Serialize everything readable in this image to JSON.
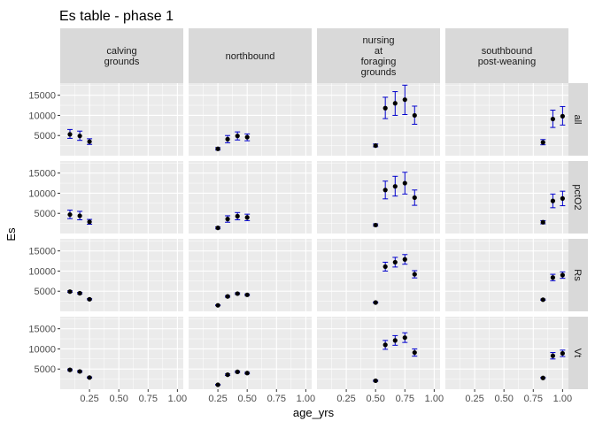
{
  "chart_data": {
    "type": "scatter",
    "title": "Es table - phase 1",
    "xlabel": "age_yrs",
    "ylabel": "Es",
    "xlim": [
      0,
      1.05
    ],
    "ylim": [
      0,
      18000
    ],
    "x_ticks": [
      0.25,
      0.5,
      0.75,
      1.0
    ],
    "x_tick_labels": [
      "0.25",
      "0.50",
      "0.75",
      "1.00"
    ],
    "y_ticks": [
      5000,
      10000,
      15000
    ],
    "y_tick_labels": [
      "5000",
      "10000",
      "15000"
    ],
    "grid": true,
    "column_facets": [
      {
        "key": "calving",
        "label": [
          "calving",
          "grounds"
        ]
      },
      {
        "key": "northbound",
        "label": [
          "northbound"
        ]
      },
      {
        "key": "nursing",
        "label": [
          "nursing",
          "at",
          "foraging",
          "grounds"
        ]
      },
      {
        "key": "southbound",
        "label": [
          "southbound",
          "post-weaning"
        ]
      }
    ],
    "row_facets": [
      "all",
      "pctO2",
      "Rs",
      "Vt"
    ],
    "colors": {
      "point": "#000000",
      "errorbar": "#0000cc",
      "panel": "#ebebeb",
      "strip": "#d9d9d9",
      "grid": "#ffffff"
    },
    "panels": [
      {
        "row": "all",
        "col": "calving",
        "points": [
          {
            "x": 0.083,
            "y": 5300,
            "lo": 4300,
            "hi": 6500
          },
          {
            "x": 0.167,
            "y": 4900,
            "lo": 3800,
            "hi": 6100
          },
          {
            "x": 0.25,
            "y": 3500,
            "lo": 2800,
            "hi": 4200
          }
        ]
      },
      {
        "row": "all",
        "col": "northbound",
        "points": [
          {
            "x": 0.25,
            "y": 1700,
            "lo": 1400,
            "hi": 2000
          },
          {
            "x": 0.333,
            "y": 4100,
            "lo": 3200,
            "hi": 5000
          },
          {
            "x": 0.417,
            "y": 4900,
            "lo": 3900,
            "hi": 5900
          },
          {
            "x": 0.5,
            "y": 4600,
            "lo": 3700,
            "hi": 5400
          }
        ]
      },
      {
        "row": "all",
        "col": "nursing",
        "points": [
          {
            "x": 0.5,
            "y": 2500,
            "lo": 2200,
            "hi": 2900
          },
          {
            "x": 0.583,
            "y": 11800,
            "lo": 9200,
            "hi": 14500
          },
          {
            "x": 0.667,
            "y": 13000,
            "lo": 10000,
            "hi": 15900
          },
          {
            "x": 0.75,
            "y": 13900,
            "lo": 10200,
            "hi": 17500
          },
          {
            "x": 0.833,
            "y": 10000,
            "lo": 7800,
            "hi": 12300
          }
        ]
      },
      {
        "row": "all",
        "col": "southbound",
        "points": [
          {
            "x": 0.833,
            "y": 3300,
            "lo": 2700,
            "hi": 4000
          },
          {
            "x": 0.917,
            "y": 9100,
            "lo": 7000,
            "hi": 11300
          },
          {
            "x": 1.0,
            "y": 9800,
            "lo": 7600,
            "hi": 12200
          }
        ]
      },
      {
        "row": "pctO2",
        "col": "calving",
        "points": [
          {
            "x": 0.083,
            "y": 4700,
            "lo": 3700,
            "hi": 5800
          },
          {
            "x": 0.167,
            "y": 4400,
            "lo": 3400,
            "hi": 5500
          },
          {
            "x": 0.25,
            "y": 2900,
            "lo": 2300,
            "hi": 3500
          }
        ]
      },
      {
        "row": "pctO2",
        "col": "northbound",
        "points": [
          {
            "x": 0.25,
            "y": 1400,
            "lo": 1150,
            "hi": 1650
          },
          {
            "x": 0.333,
            "y": 3600,
            "lo": 2800,
            "hi": 4400
          },
          {
            "x": 0.417,
            "y": 4300,
            "lo": 3400,
            "hi": 5200
          },
          {
            "x": 0.5,
            "y": 4000,
            "lo": 3200,
            "hi": 4800
          }
        ]
      },
      {
        "row": "pctO2",
        "col": "nursing",
        "points": [
          {
            "x": 0.5,
            "y": 2100,
            "lo": 1850,
            "hi": 2400
          },
          {
            "x": 0.583,
            "y": 10800,
            "lo": 8600,
            "hi": 13000
          },
          {
            "x": 0.667,
            "y": 11700,
            "lo": 9300,
            "hi": 14200
          },
          {
            "x": 0.75,
            "y": 12500,
            "lo": 9800,
            "hi": 15200
          },
          {
            "x": 0.833,
            "y": 8900,
            "lo": 7000,
            "hi": 10800
          }
        ]
      },
      {
        "row": "pctO2",
        "col": "southbound",
        "points": [
          {
            "x": 0.833,
            "y": 2800,
            "lo": 2400,
            "hi": 3200
          },
          {
            "x": 0.917,
            "y": 8100,
            "lo": 6400,
            "hi": 9800
          },
          {
            "x": 1.0,
            "y": 8700,
            "lo": 6900,
            "hi": 10500
          }
        ]
      },
      {
        "row": "Rs",
        "col": "calving",
        "points": [
          {
            "x": 0.083,
            "y": 4900,
            "lo": 4700,
            "hi": 5100
          },
          {
            "x": 0.167,
            "y": 4500,
            "lo": 4300,
            "hi": 4700
          },
          {
            "x": 0.25,
            "y": 3000,
            "lo": 2850,
            "hi": 3150
          }
        ]
      },
      {
        "row": "Rs",
        "col": "northbound",
        "points": [
          {
            "x": 0.25,
            "y": 1500,
            "lo": 1400,
            "hi": 1600
          },
          {
            "x": 0.333,
            "y": 3700,
            "lo": 3500,
            "hi": 3900
          },
          {
            "x": 0.417,
            "y": 4400,
            "lo": 4200,
            "hi": 4600
          },
          {
            "x": 0.5,
            "y": 4100,
            "lo": 3900,
            "hi": 4300
          }
        ]
      },
      {
        "row": "Rs",
        "col": "nursing",
        "points": [
          {
            "x": 0.5,
            "y": 2200,
            "lo": 2050,
            "hi": 2350
          },
          {
            "x": 0.583,
            "y": 11100,
            "lo": 10000,
            "hi": 12200
          },
          {
            "x": 0.667,
            "y": 12200,
            "lo": 11000,
            "hi": 13400
          },
          {
            "x": 0.75,
            "y": 12900,
            "lo": 11700,
            "hi": 14100
          },
          {
            "x": 0.833,
            "y": 9200,
            "lo": 8300,
            "hi": 10100
          }
        ]
      },
      {
        "row": "Rs",
        "col": "southbound",
        "points": [
          {
            "x": 0.833,
            "y": 2900,
            "lo": 2750,
            "hi": 3050
          },
          {
            "x": 0.917,
            "y": 8400,
            "lo": 7600,
            "hi": 9200
          },
          {
            "x": 1.0,
            "y": 9000,
            "lo": 8200,
            "hi": 9800
          }
        ]
      },
      {
        "row": "Vt",
        "col": "calving",
        "points": [
          {
            "x": 0.083,
            "y": 4800,
            "lo": 4600,
            "hi": 5000
          },
          {
            "x": 0.167,
            "y": 4400,
            "lo": 4200,
            "hi": 4600
          },
          {
            "x": 0.25,
            "y": 2900,
            "lo": 2750,
            "hi": 3050
          }
        ]
      },
      {
        "row": "Vt",
        "col": "northbound",
        "points": [
          {
            "x": 0.25,
            "y": 1100,
            "lo": 1000,
            "hi": 1200
          },
          {
            "x": 0.333,
            "y": 3600,
            "lo": 3400,
            "hi": 3800
          },
          {
            "x": 0.417,
            "y": 4300,
            "lo": 4100,
            "hi": 4500
          },
          {
            "x": 0.5,
            "y": 4000,
            "lo": 3800,
            "hi": 4200
          }
        ]
      },
      {
        "row": "Vt",
        "col": "nursing",
        "points": [
          {
            "x": 0.5,
            "y": 2100,
            "lo": 1950,
            "hi": 2250
          },
          {
            "x": 0.583,
            "y": 11000,
            "lo": 9900,
            "hi": 12100
          },
          {
            "x": 0.667,
            "y": 12100,
            "lo": 10900,
            "hi": 13300
          },
          {
            "x": 0.75,
            "y": 12800,
            "lo": 11600,
            "hi": 14000
          },
          {
            "x": 0.833,
            "y": 9100,
            "lo": 8200,
            "hi": 10000
          }
        ]
      },
      {
        "row": "Vt",
        "col": "southbound",
        "points": [
          {
            "x": 0.833,
            "y": 2800,
            "lo": 2650,
            "hi": 2950
          },
          {
            "x": 0.917,
            "y": 8300,
            "lo": 7500,
            "hi": 9100
          },
          {
            "x": 1.0,
            "y": 8900,
            "lo": 8100,
            "hi": 9700
          }
        ]
      }
    ]
  }
}
